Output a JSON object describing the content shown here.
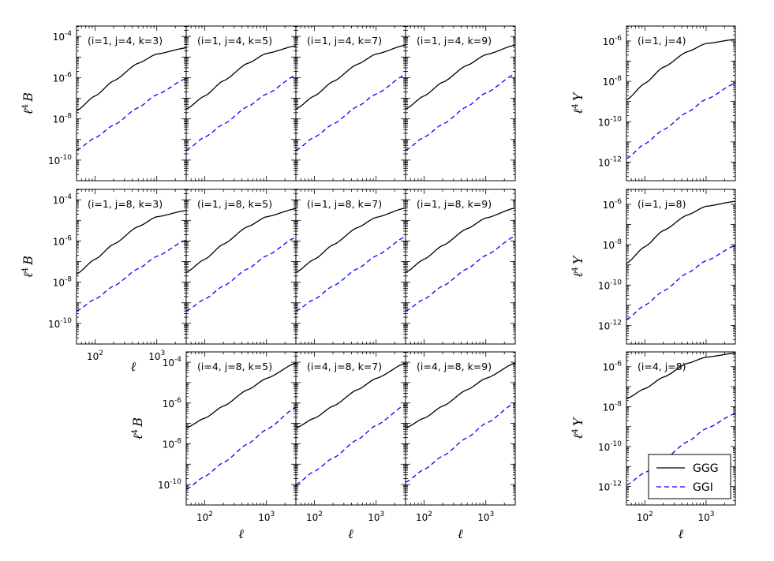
{
  "chart_data": {
    "type": "line",
    "x_scale": "log",
    "y_scale": "log",
    "xlim": [
      50,
      3000
    ],
    "xlabel": "ℓ",
    "x_ticks": [
      {
        "value": 100,
        "label": "10",
        "exp": "2"
      },
      {
        "value": 1000,
        "label": "10",
        "exp": "3"
      }
    ],
    "left_block": {
      "ylabel_prefix": "ℓ",
      "ylabel_exp": "4",
      "ylabel_symbol": "B",
      "ylim": [
        1e-11,
        0.00032
      ],
      "y_ticks": [
        {
          "value": 1e-10,
          "label": "10",
          "exp": "-10"
        },
        {
          "value": 1e-08,
          "label": "10",
          "exp": "-8"
        },
        {
          "value": 1e-06,
          "label": "10",
          "exp": "-6"
        },
        {
          "value": 0.0001,
          "label": "10",
          "exp": "-4"
        }
      ]
    },
    "right_block": {
      "ylabel_prefix": "ℓ",
      "ylabel_exp": "4",
      "ylabel_symbol": "Y",
      "ylim": [
        1.2e-13,
        5.5e-06
      ],
      "y_ticks": [
        {
          "value": 1e-12,
          "label": "10",
          "exp": "-12"
        },
        {
          "value": 1e-10,
          "label": "10",
          "exp": "-10"
        },
        {
          "value": 1e-08,
          "label": "10",
          "exp": "-8"
        },
        {
          "value": 1e-06,
          "label": "10",
          "exp": "-6"
        }
      ]
    },
    "legend": {
      "placement": "lower-right",
      "entries": [
        {
          "name": "GGG",
          "color": "#000000",
          "style": "solid"
        },
        {
          "name": "GGI",
          "color": "#0000ff",
          "style": "dashed"
        }
      ]
    },
    "panels": [
      {
        "label": "(i=1, j=4, k=3)",
        "block": "B",
        "x": [
          50,
          100,
          200,
          500,
          1000,
          3000
        ],
        "ggg": [
          2.5e-08,
          1.3e-07,
          7e-07,
          5e-06,
          1.4e-05,
          2.8e-05
        ],
        "ggi": [
          3e-10,
          1.2e-09,
          5e-09,
          3.5e-08,
          1.5e-07,
          9e-07
        ]
      },
      {
        "label": "(i=1, j=4, k=5)",
        "block": "B",
        "x": [
          50,
          100,
          200,
          500,
          1000,
          3000
        ],
        "ggg": [
          3e-08,
          1.3e-07,
          7e-07,
          5e-06,
          1.5e-05,
          3.5e-05
        ],
        "ggi": [
          3e-10,
          1.3e-09,
          5.5e-09,
          4e-08,
          1.6e-07,
          1.3e-06
        ]
      },
      {
        "label": "(i=1, j=4, k=7)",
        "block": "B",
        "x": [
          50,
          100,
          200,
          500,
          1000,
          3000
        ],
        "ggg": [
          3e-08,
          1.3e-07,
          6.5e-07,
          4.5e-06,
          1.4e-05,
          3.8e-05
        ],
        "ggi": [
          3e-10,
          1.3e-09,
          5.5e-09,
          4e-08,
          1.6e-07,
          1.4e-06
        ]
      },
      {
        "label": "(i=1, j=4, k=9)",
        "block": "B",
        "x": [
          50,
          100,
          200,
          500,
          1000,
          3000
        ],
        "ggg": [
          3e-08,
          1.3e-07,
          6e-07,
          4e-06,
          1.3e-05,
          3.8e-05
        ],
        "ggi": [
          3e-10,
          1.3e-09,
          5.5e-09,
          4e-08,
          1.8e-07,
          1.5e-06
        ]
      },
      {
        "label": "(i=1, j=8, k=3)",
        "block": "B",
        "x": [
          50,
          100,
          200,
          500,
          1000,
          3000
        ],
        "ggg": [
          2.5e-08,
          1.3e-07,
          7e-07,
          5e-06,
          1.5e-05,
          3e-05
        ],
        "ggi": [
          4e-10,
          1.5e-09,
          6.5e-09,
          4.5e-08,
          1.8e-07,
          1.1e-06
        ]
      },
      {
        "label": "(i=1, j=8, k=5)",
        "block": "B",
        "x": [
          50,
          100,
          200,
          500,
          1000,
          3000
        ],
        "ggg": [
          3e-08,
          1.3e-07,
          7e-07,
          5e-06,
          1.5e-05,
          3.7e-05
        ],
        "ggi": [
          4e-10,
          1.5e-09,
          6.5e-09,
          4.5e-08,
          1.9e-07,
          1.5e-06
        ]
      },
      {
        "label": "(i=1, j=8, k=7)",
        "block": "B",
        "x": [
          50,
          100,
          200,
          500,
          1000,
          3000
        ],
        "ggg": [
          3e-08,
          1.3e-07,
          6.5e-07,
          4.5e-06,
          1.4e-05,
          4e-05
        ],
        "ggi": [
          4e-10,
          1.5e-09,
          6.5e-09,
          4.5e-08,
          1.9e-07,
          1.6e-06
        ]
      },
      {
        "label": "(i=1, j=8, k=9)",
        "block": "B",
        "x": [
          50,
          100,
          200,
          500,
          1000,
          3000
        ],
        "ggg": [
          3e-08,
          1.3e-07,
          6e-07,
          4e-06,
          1.3e-05,
          4e-05
        ],
        "ggi": [
          4e-10,
          1.5e-09,
          6.5e-09,
          4.5e-08,
          2e-07,
          1.7e-06
        ]
      },
      {
        "label": "(i=4, j=8, k=5)",
        "block": "B",
        "x": [
          50,
          100,
          200,
          500,
          1000,
          3000
        ],
        "ggg": [
          6e-08,
          1.8e-07,
          7e-07,
          4.5e-06,
          1.6e-05,
          9e-05
        ],
        "ggi": [
          6e-11,
          2.5e-10,
          1.2e-09,
          1e-08,
          5e-08,
          6e-07
        ]
      },
      {
        "label": "(i=4, j=8, k=7)",
        "block": "B",
        "x": [
          50,
          100,
          200,
          500,
          1000,
          3000
        ],
        "ggg": [
          6e-08,
          1.8e-07,
          7e-07,
          4.5e-06,
          1.6e-05,
          9e-05
        ],
        "ggi": [
          1e-10,
          4.5e-10,
          2e-09,
          1.6e-08,
          8e-08,
          8e-07
        ]
      },
      {
        "label": "(i=4, j=8, k=9)",
        "block": "B",
        "x": [
          50,
          100,
          200,
          500,
          1000,
          3000
        ],
        "ggg": [
          6e-08,
          1.8e-07,
          7e-07,
          4.5e-06,
          1.6e-05,
          9e-05
        ],
        "ggi": [
          1.3e-10,
          5.5e-10,
          2.5e-09,
          2e-08,
          1e-07,
          1e-06
        ]
      },
      {
        "label": "(i=1, j=4)",
        "block": "Y",
        "x": [
          50,
          100,
          200,
          500,
          1000,
          3000
        ],
        "ggg": [
          1.2e-09,
          8e-09,
          5e-08,
          3e-07,
          7.5e-07,
          1.2e-06
        ],
        "ggi": [
          1.5e-12,
          8e-12,
          4e-11,
          3e-10,
          1.3e-09,
          8e-09
        ]
      },
      {
        "label": "(i=1, j=8)",
        "block": "Y",
        "x": [
          50,
          100,
          200,
          500,
          1000,
          3000
        ],
        "ggg": [
          1.2e-09,
          8e-09,
          5e-08,
          3e-07,
          8e-07,
          1.4e-06
        ],
        "ggi": [
          2e-12,
          1e-11,
          5e-11,
          4e-10,
          1.6e-09,
          9e-09
        ]
      },
      {
        "label": "(i=4, j=8)",
        "block": "Y",
        "x": [
          50,
          100,
          200,
          500,
          1000,
          3000
        ],
        "ggg": [
          2.5e-08,
          8e-08,
          3e-07,
          1.5e-06,
          3e-06,
          4.8e-06
        ],
        "ggi": [
          1.2e-12,
          5e-12,
          2.2e-11,
          1.8e-10,
          8e-10,
          4.5e-09
        ]
      }
    ]
  }
}
